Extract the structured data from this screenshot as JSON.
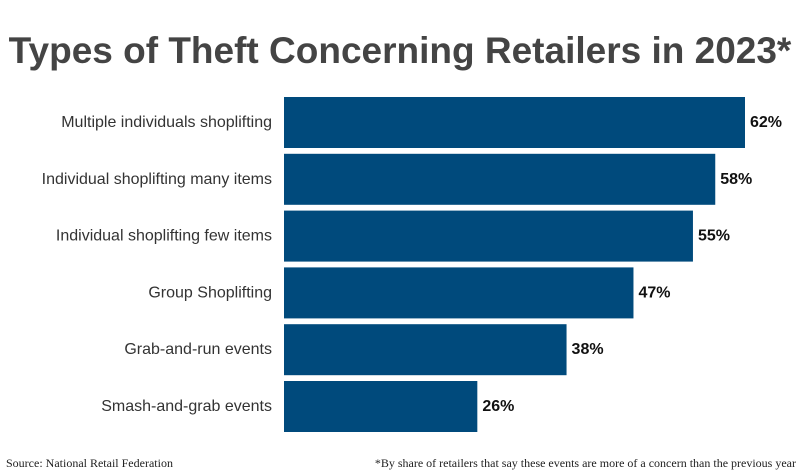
{
  "chart_data": {
    "type": "bar",
    "orientation": "horizontal",
    "title": "Types of Theft Concerning Retailers in 2023*",
    "categories": [
      "Multiple individuals shoplifting",
      "Individual shoplifting many items",
      "Individual shoplifting few items",
      "Group Shoplifting",
      "Grab-and-run events",
      "Smash-and-grab events"
    ],
    "values": [
      62,
      58,
      55,
      47,
      38,
      26
    ],
    "value_labels": [
      "62%",
      "58%",
      "55%",
      "47%",
      "38%",
      "26%"
    ],
    "unit": "%",
    "xlim": [
      0,
      62
    ],
    "grid": false,
    "bar_color": "#004a7c"
  },
  "footer": {
    "source": "Source: National Retail Federation",
    "note": "*By share of retailers that say these events are more of a concern than the previous year"
  }
}
